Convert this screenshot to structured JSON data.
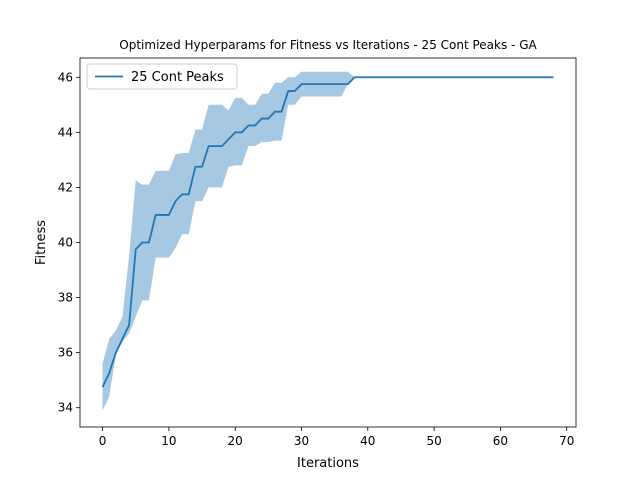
{
  "chart_data": {
    "type": "line",
    "title": "Optimized Hyperparams for Fitness vs Iterations - 25 Cont Peaks - GA",
    "xlabel": "Iterations",
    "ylabel": "Fitness",
    "xlim": [
      -3.4,
      71.4
    ],
    "ylim": [
      33.3,
      46.7
    ],
    "xticks": [
      0,
      10,
      20,
      30,
      40,
      50,
      60,
      70
    ],
    "yticks": [
      34,
      36,
      38,
      40,
      42,
      44,
      46
    ],
    "grid": false,
    "legend": {
      "placement": "top-left",
      "entries": [
        "25 Cont Peaks"
      ]
    },
    "series": [
      {
        "name": "25 Cont Peaks",
        "color": "#1f77b4",
        "band_color": "#a6c8e2",
        "x": [
          0,
          1,
          2,
          3,
          4,
          5,
          6,
          7,
          8,
          9,
          10,
          11,
          12,
          13,
          14,
          15,
          16,
          17,
          18,
          19,
          20,
          21,
          22,
          23,
          24,
          25,
          26,
          27,
          28,
          29,
          30,
          31,
          32,
          33,
          34,
          35,
          36,
          37,
          38,
          39,
          40,
          41,
          42,
          43,
          44,
          45,
          46,
          47,
          48,
          49,
          50,
          51,
          52,
          53,
          54,
          55,
          56,
          57,
          58,
          59,
          60,
          61,
          62,
          63,
          64,
          65,
          66,
          67,
          68
        ],
        "mean": [
          34.75,
          35.25,
          36.0,
          36.5,
          37.0,
          39.75,
          40.0,
          40.0,
          41.0,
          41.0,
          41.0,
          41.5,
          41.75,
          41.75,
          42.75,
          42.75,
          43.5,
          43.5,
          43.5,
          43.75,
          44.0,
          44.0,
          44.25,
          44.25,
          44.5,
          44.5,
          44.75,
          44.75,
          45.5,
          45.5,
          45.75,
          45.75,
          45.75,
          45.75,
          45.75,
          45.75,
          45.75,
          45.75,
          46,
          46,
          46,
          46,
          46,
          46,
          46,
          46,
          46,
          46,
          46,
          46,
          46,
          46,
          46,
          46,
          46,
          46,
          46,
          46,
          46,
          46,
          46,
          46,
          46,
          46,
          46,
          46,
          46,
          46,
          46
        ],
        "upper": [
          35.6,
          36.5,
          36.8,
          37.3,
          39.5,
          42.25,
          42.1,
          42.1,
          42.6,
          42.6,
          42.6,
          43.2,
          43.25,
          43.25,
          44.1,
          44.1,
          45.0,
          45.0,
          45.0,
          44.8,
          45.25,
          45.25,
          45.0,
          45.0,
          45.4,
          45.4,
          45.8,
          45.8,
          46.0,
          46.0,
          46.2,
          46.2,
          46.2,
          46.2,
          46.2,
          46.2,
          46.2,
          46.2,
          46,
          46,
          46,
          46,
          46,
          46,
          46,
          46,
          46,
          46,
          46,
          46,
          46,
          46,
          46,
          46,
          46,
          46,
          46,
          46,
          46,
          46,
          46,
          46,
          46,
          46,
          46,
          46,
          46,
          46,
          46
        ],
        "lower": [
          33.9,
          34.4,
          35.9,
          36.4,
          36.7,
          37.3,
          37.9,
          37.9,
          39.45,
          39.45,
          39.45,
          39.8,
          40.3,
          40.3,
          41.5,
          41.5,
          42.0,
          42.0,
          42.0,
          42.75,
          42.8,
          42.8,
          43.5,
          43.5,
          43.65,
          43.65,
          43.7,
          43.7,
          45.0,
          45.0,
          45.3,
          45.3,
          45.3,
          45.3,
          45.3,
          45.3,
          45.3,
          45.75,
          46,
          46,
          46,
          46,
          46,
          46,
          46,
          46,
          46,
          46,
          46,
          46,
          46,
          46,
          46,
          46,
          46,
          46,
          46,
          46,
          46,
          46,
          46,
          46,
          46,
          46,
          46,
          46,
          46,
          46,
          46
        ]
      }
    ]
  }
}
